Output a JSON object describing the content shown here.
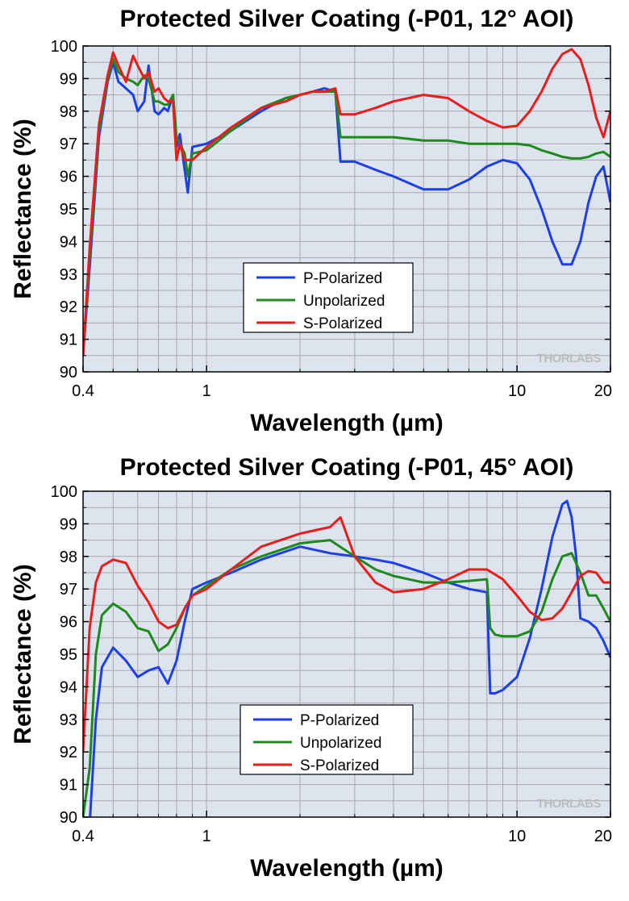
{
  "chart_data": [
    {
      "type": "line",
      "title": "Protected Silver Coating (-P01, 12° AOI)",
      "xlabel": "Wavelength (µm)",
      "ylabel": "Reflectance (%)",
      "x_scale": "log",
      "xlim": [
        0.4,
        20
      ],
      "ylim": [
        90,
        100
      ],
      "x_ticks": [
        0.4,
        1,
        10,
        20
      ],
      "y_ticks": [
        90,
        91,
        92,
        93,
        94,
        95,
        96,
        97,
        98,
        99,
        100
      ],
      "grid": true,
      "legend_position": "center-left",
      "watermark": "THORLABS",
      "series": [
        {
          "name": "P-Polarized",
          "color": "#1f3fe6",
          "x": [
            0.4,
            0.42,
            0.45,
            0.48,
            0.5,
            0.52,
            0.55,
            0.58,
            0.6,
            0.63,
            0.65,
            0.68,
            0.7,
            0.73,
            0.75,
            0.78,
            0.8,
            0.82,
            0.85,
            0.87,
            0.9,
            1.0,
            1.2,
            1.5,
            1.8,
            2.0,
            2.2,
            2.4,
            2.6,
            2.7,
            3.0,
            3.5,
            4,
            5,
            6,
            7,
            8,
            9,
            10,
            11,
            12,
            13,
            14,
            15,
            16,
            17,
            18,
            19,
            20
          ],
          "y": [
            90.5,
            93.2,
            97.2,
            98.9,
            99.5,
            98.9,
            98.7,
            98.5,
            98.0,
            98.3,
            99.4,
            98.0,
            97.9,
            98.1,
            98.0,
            98.5,
            96.9,
            97.3,
            96.2,
            95.5,
            96.9,
            97.0,
            97.4,
            98.0,
            98.4,
            98.5,
            98.6,
            98.7,
            98.6,
            96.45,
            96.45,
            96.2,
            96.0,
            95.6,
            95.6,
            95.9,
            96.3,
            96.5,
            96.4,
            95.9,
            95.0,
            94.0,
            93.3,
            93.3,
            94.0,
            95.2,
            96.0,
            96.3,
            95.2
          ]
        },
        {
          "name": "Unpolarized",
          "color": "#1e8a1e",
          "x": [
            0.4,
            0.42,
            0.45,
            0.48,
            0.5,
            0.52,
            0.55,
            0.58,
            0.6,
            0.63,
            0.65,
            0.68,
            0.7,
            0.73,
            0.75,
            0.78,
            0.8,
            0.82,
            0.85,
            0.87,
            0.9,
            1.0,
            1.2,
            1.5,
            1.8,
            2.0,
            2.2,
            2.4,
            2.6,
            2.7,
            3.0,
            3.5,
            4,
            5,
            6,
            7,
            8,
            9,
            10,
            11,
            12,
            13,
            14,
            15,
            16,
            17,
            18,
            19,
            20
          ],
          "y": [
            90.5,
            93.5,
            97.4,
            99.0,
            99.6,
            99.2,
            99.0,
            98.9,
            98.8,
            99.1,
            99.0,
            98.3,
            98.3,
            98.2,
            98.2,
            98.5,
            97.2,
            97.0,
            96.7,
            96.0,
            96.7,
            96.8,
            97.4,
            98.1,
            98.4,
            98.5,
            98.6,
            98.6,
            98.6,
            97.2,
            97.2,
            97.2,
            97.2,
            97.1,
            97.1,
            97.0,
            97.0,
            97.0,
            97.0,
            96.95,
            96.8,
            96.7,
            96.6,
            96.55,
            96.55,
            96.6,
            96.7,
            96.75,
            96.6
          ]
        },
        {
          "name": "S-Polarized",
          "color": "#e61e1e",
          "x": [
            0.4,
            0.42,
            0.45,
            0.48,
            0.5,
            0.52,
            0.55,
            0.58,
            0.6,
            0.63,
            0.65,
            0.68,
            0.7,
            0.73,
            0.75,
            0.78,
            0.8,
            0.82,
            0.85,
            0.87,
            0.9,
            1.0,
            1.2,
            1.5,
            1.8,
            2.0,
            2.2,
            2.4,
            2.6,
            2.7,
            3.0,
            3.5,
            4,
            5,
            6,
            7,
            8,
            9,
            10,
            11,
            12,
            13,
            14,
            15,
            16,
            17,
            18,
            19,
            20
          ],
          "y": [
            90.5,
            93.8,
            97.6,
            99.1,
            99.8,
            99.4,
            98.9,
            99.7,
            99.4,
            99.0,
            99.2,
            98.6,
            98.7,
            98.4,
            98.3,
            98.3,
            96.5,
            97.0,
            96.5,
            96.5,
            96.5,
            96.9,
            97.5,
            98.1,
            98.3,
            98.5,
            98.6,
            98.6,
            98.7,
            97.9,
            97.9,
            98.1,
            98.3,
            98.5,
            98.4,
            98.0,
            97.7,
            97.5,
            97.55,
            98.0,
            98.6,
            99.3,
            99.75,
            99.9,
            99.6,
            98.8,
            97.8,
            97.2,
            98.0
          ]
        }
      ],
      "legend": [
        "P-Polarized",
        "Unpolarized",
        "S-Polarized"
      ]
    },
    {
      "type": "line",
      "title": "Protected Silver Coating (-P01, 45° AOI)",
      "xlabel": "Wavelength (µm)",
      "ylabel": "Reflectance (%)",
      "x_scale": "log",
      "xlim": [
        0.4,
        20
      ],
      "ylim": [
        90,
        100
      ],
      "x_ticks": [
        0.4,
        1,
        10,
        20
      ],
      "y_ticks": [
        90,
        91,
        92,
        93,
        94,
        95,
        96,
        97,
        98,
        99,
        100
      ],
      "grid": true,
      "legend_position": "bottom-center",
      "watermark": "THORLABS",
      "series": [
        {
          "name": "P-Polarized",
          "color": "#1f3fe6",
          "x": [
            0.4,
            0.42,
            0.44,
            0.46,
            0.5,
            0.55,
            0.6,
            0.65,
            0.7,
            0.75,
            0.8,
            0.85,
            0.9,
            1.0,
            1.2,
            1.5,
            2.0,
            2.5,
            3.0,
            3.5,
            4,
            5,
            6,
            7,
            8,
            8.2,
            8.5,
            9,
            10,
            11,
            12,
            13,
            14,
            14.5,
            15,
            15.5,
            16,
            17,
            18,
            19,
            20
          ],
          "y": [
            90.0,
            89.8,
            93.0,
            94.6,
            95.2,
            94.8,
            94.3,
            94.5,
            94.6,
            94.1,
            94.8,
            96.0,
            97.0,
            97.2,
            97.5,
            97.9,
            98.3,
            98.1,
            98.0,
            97.9,
            97.8,
            97.5,
            97.2,
            97.0,
            96.9,
            93.8,
            93.8,
            93.9,
            94.3,
            95.5,
            97.0,
            98.6,
            99.6,
            99.7,
            99.2,
            98.0,
            96.1,
            96.0,
            95.8,
            95.4,
            94.9
          ]
        },
        {
          "name": "Unpolarized",
          "color": "#1e8a1e",
          "x": [
            0.4,
            0.42,
            0.44,
            0.46,
            0.5,
            0.55,
            0.6,
            0.65,
            0.7,
            0.75,
            0.8,
            0.85,
            0.9,
            1.0,
            1.2,
            1.5,
            2.0,
            2.5,
            3.0,
            3.5,
            4,
            5,
            6,
            7,
            8,
            8.2,
            8.5,
            9,
            10,
            11,
            12,
            13,
            14,
            15,
            16,
            17,
            18,
            19,
            20
          ],
          "y": [
            90.0,
            91.5,
            95.0,
            96.2,
            96.55,
            96.3,
            95.8,
            95.7,
            95.1,
            95.3,
            95.8,
            96.4,
            96.8,
            97.1,
            97.6,
            98.0,
            98.4,
            98.5,
            98.0,
            97.6,
            97.4,
            97.2,
            97.2,
            97.25,
            97.3,
            95.8,
            95.6,
            95.55,
            95.55,
            95.7,
            96.3,
            97.3,
            98.0,
            98.1,
            97.5,
            96.8,
            96.8,
            96.4,
            96.0
          ]
        },
        {
          "name": "S-Polarized",
          "color": "#e61e1e",
          "x": [
            0.4,
            0.42,
            0.44,
            0.46,
            0.5,
            0.55,
            0.6,
            0.65,
            0.7,
            0.75,
            0.8,
            0.85,
            0.9,
            1.0,
            1.2,
            1.5,
            2.0,
            2.5,
            2.7,
            3.0,
            3.5,
            4,
            5,
            6,
            7,
            8,
            9,
            10,
            11,
            12,
            13,
            14,
            15,
            16,
            17,
            18,
            19,
            20
          ],
          "y": [
            92.0,
            95.8,
            97.2,
            97.7,
            97.9,
            97.8,
            97.1,
            96.6,
            96.0,
            95.8,
            95.9,
            96.4,
            96.8,
            97.0,
            97.6,
            98.3,
            98.7,
            98.9,
            99.2,
            98.0,
            97.2,
            96.9,
            97.0,
            97.3,
            97.6,
            97.6,
            97.3,
            96.8,
            96.3,
            96.05,
            96.1,
            96.4,
            96.9,
            97.4,
            97.55,
            97.5,
            97.2,
            97.2
          ]
        }
      ],
      "legend": [
        "P-Polarized",
        "Unpolarized",
        "S-Polarized"
      ]
    }
  ]
}
